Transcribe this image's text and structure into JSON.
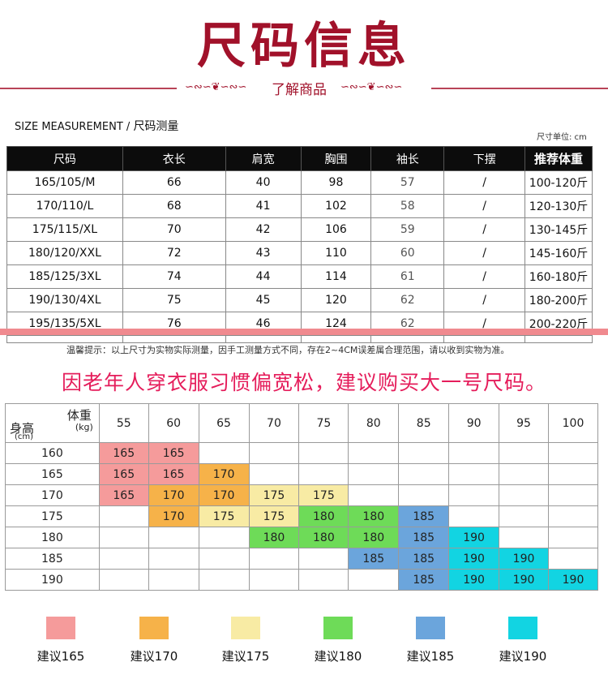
{
  "header": {
    "title": "尺码信息",
    "subtitle": "了解商品"
  },
  "measurement": {
    "label_en": "SIZE MEASUREMENT",
    "label_cn": "尺码测量",
    "unit": "尺寸单位: cm"
  },
  "size_table": {
    "headers": [
      "尺码",
      "衣长",
      "肩宽",
      "胸围",
      "袖长",
      "下摆",
      "推荐体重"
    ],
    "rows": [
      [
        "165/105/M",
        "66",
        "40",
        "98",
        "57",
        "/",
        "100-120斤"
      ],
      [
        "170/110/L",
        "68",
        "41",
        "102",
        "58",
        "/",
        "120-130斤"
      ],
      [
        "175/115/XL",
        "70",
        "42",
        "106",
        "59",
        "/",
        "130-145斤"
      ],
      [
        "180/120/XXL",
        "72",
        "43",
        "110",
        "60",
        "/",
        "145-160斤"
      ],
      [
        "185/125/3XL",
        "74",
        "44",
        "114",
        "61",
        "/",
        "160-180斤"
      ],
      [
        "190/130/4XL",
        "75",
        "45",
        "120",
        "62",
        "/",
        "180-200斤"
      ],
      [
        "195/135/5XL",
        "76",
        "46",
        "124",
        "62",
        "/",
        "200-220斤"
      ]
    ]
  },
  "tip": "温馨提示：以上尺寸为实物实际测量，因手工测量方式不同，存在2~4CM误差属合理范围，请以收到实物为准。",
  "advice": "因老年人穿衣服习惯偏宽松，建议购买大一号尺码。",
  "recommend_table": {
    "corner": {
      "weight": "体重",
      "weight_unit": "(kg)",
      "height": "身高",
      "height_unit": "(cm)"
    },
    "weights": [
      "55",
      "60",
      "65",
      "70",
      "75",
      "80",
      "85",
      "90",
      "95",
      "100"
    ],
    "rows": [
      {
        "height": "160",
        "cells": [
          "165",
          "165",
          "",
          "",
          "",
          "",
          "",
          "",
          "",
          ""
        ]
      },
      {
        "height": "165",
        "cells": [
          "165",
          "165",
          "170",
          "",
          "",
          "",
          "",
          "",
          "",
          ""
        ]
      },
      {
        "height": "170",
        "cells": [
          "165",
          "170",
          "170",
          "175",
          "175",
          "",
          "",
          "",
          "",
          ""
        ]
      },
      {
        "height": "175",
        "cells": [
          "",
          "170",
          "175",
          "175",
          "180",
          "180",
          "185",
          "",
          "",
          ""
        ]
      },
      {
        "height": "180",
        "cells": [
          "",
          "",
          "",
          "180",
          "180",
          "180",
          "185",
          "190",
          "",
          ""
        ]
      },
      {
        "height": "185",
        "cells": [
          "",
          "",
          "",
          "",
          "",
          "185",
          "185",
          "190",
          "190",
          ""
        ]
      },
      {
        "height": "190",
        "cells": [
          "",
          "",
          "",
          "",
          "",
          "",
          "185",
          "190",
          "190",
          "190"
        ]
      }
    ]
  },
  "legend": [
    {
      "label": "建议165",
      "color": "#f59b9b"
    },
    {
      "label": "建议170",
      "color": "#f6b249"
    },
    {
      "label": "建议175",
      "color": "#f8eba4"
    },
    {
      "label": "建议180",
      "color": "#6edb58"
    },
    {
      "label": "建议185",
      "color": "#6ba5dc"
    },
    {
      "label": "建议190",
      "color": "#12d4e2"
    }
  ]
}
